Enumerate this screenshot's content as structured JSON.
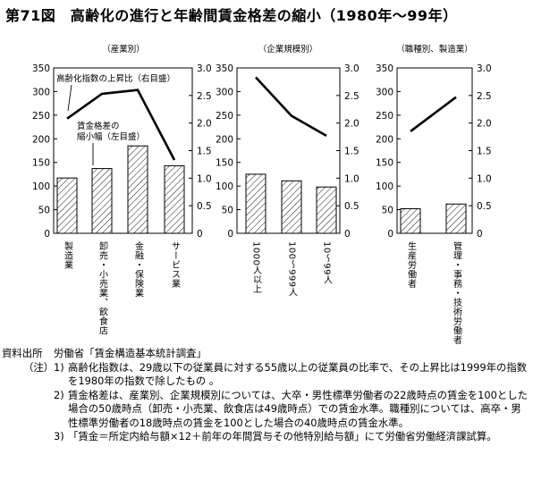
{
  "title": "第71図　高齢化の進行と年齢間賃金格差の縮小（1980年～99年）",
  "chart_data": [
    {
      "type": "bar+line",
      "subtitle": "（産業別）",
      "categories": [
        "製造業",
        "卸売・小売業、飲食店",
        "金融・保険業",
        "サービス業"
      ],
      "bar_series": {
        "name": "賃金格差の縮小幅（左目盛）",
        "values": [
          117,
          137,
          185,
          143
        ]
      },
      "line_series": {
        "name": "高齢化指数の上昇比（右目盛）",
        "values": [
          2.08,
          2.53,
          2.6,
          1.33
        ]
      },
      "left_axis": {
        "ylim": [
          0,
          350
        ],
        "ticks": [
          "0",
          "50",
          "100",
          "150",
          "200",
          "250",
          "300",
          "350"
        ]
      },
      "right_axis": {
        "ylim": [
          0,
          3.0
        ],
        "ticks": [
          "0",
          "0.5",
          "1.0",
          "1.5",
          "2.0",
          "2.5",
          "3.0"
        ]
      },
      "annotations": [
        {
          "text": "高齢化指数の上昇比（右目盛）"
        },
        {
          "lines": [
            "賃金格差の",
            "縮小幅（左目盛）"
          ]
        }
      ]
    },
    {
      "type": "bar+line",
      "subtitle": "（企業規模別）",
      "categories": [
        "1000人以上",
        "100～999人",
        "10～99人"
      ],
      "bar_series": {
        "values": [
          125,
          111,
          98
        ]
      },
      "line_series": {
        "values": [
          2.83,
          2.13,
          1.77
        ]
      },
      "left_axis": {
        "ylim": [
          0,
          350
        ],
        "ticks": [
          "0",
          "50",
          "100",
          "150",
          "200",
          "250",
          "300",
          "350"
        ]
      },
      "right_axis": {
        "ylim": [
          0,
          3.0
        ],
        "ticks": [
          "0",
          "0.5",
          "1.0",
          "1.5",
          "2.0",
          "2.5",
          "3.0"
        ]
      }
    },
    {
      "type": "bar+line",
      "subtitle": "（職種別、製造業）",
      "categories": [
        "生産労働者",
        "管理・事務・技術労働者"
      ],
      "bar_series": {
        "values": [
          52,
          62
        ]
      },
      "line_series": {
        "values": [
          1.85,
          2.47
        ]
      },
      "left_axis": {
        "ylim": [
          0,
          350
        ],
        "ticks": [
          "0",
          "50",
          "100",
          "150",
          "200",
          "250",
          "300",
          "350"
        ]
      },
      "right_axis": {
        "ylim": [
          0,
          3.0
        ],
        "ticks": [
          "0",
          "0.5",
          "1.0",
          "1.5",
          "2.0",
          "2.5",
          "3.0"
        ]
      }
    }
  ],
  "footnotes": {
    "source_label": "資料出所",
    "source_text": "労働省「賃金構造基本統計調査」",
    "notes_label": "（注）",
    "items": [
      {
        "num": "1)",
        "text": "高齢化指数は、29歳以下の従業員に対する55歳以上の従業員の比率で、その上昇比は1999年の指数を1980年の指数で除したもの 。"
      },
      {
        "num": "2)",
        "text": "賃金格差は、産業別、企業規模別については、大卒・男性標準労働者の22歳時点の賃金を100とした場合の50歳時点（卸売・小売業、飲食店は49歳時点）での賃金水準。職種別については、高卒・男性標準労働者の18歳時点の賃金を100とした場合の40歳時点の賃金水準。"
      },
      {
        "num": "3)",
        "text": "「賃金＝所定内給与額×12＋前年の年間賞与その他特別給与額」にて労働省労働経済課試算。"
      }
    ]
  }
}
